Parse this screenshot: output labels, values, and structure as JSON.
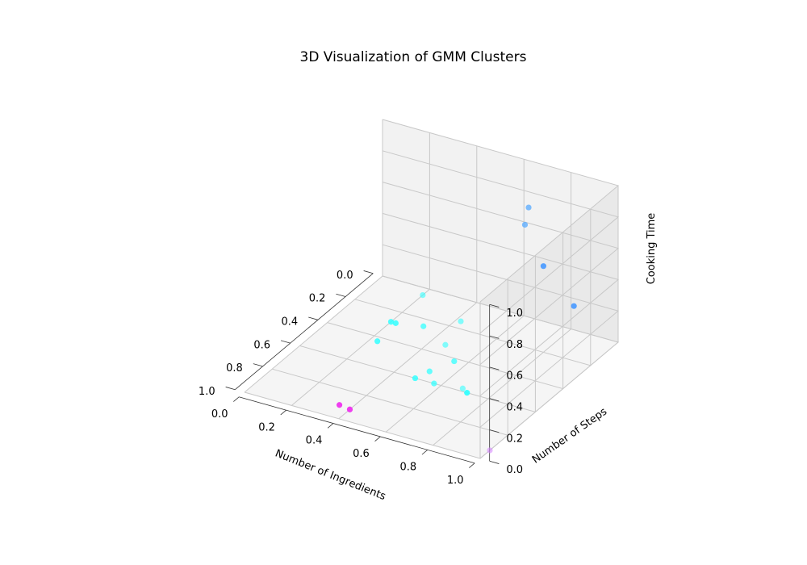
{
  "chart_data": {
    "type": "scatter3d",
    "title": "3D Visualization of GMM Clusters",
    "xlabel": "Number of Ingredients",
    "ylabel": "Number of Steps",
    "zlabel": "Cooking Time",
    "xlim": [
      0,
      1
    ],
    "ylim": [
      0,
      1
    ],
    "zlim": [
      0,
      1
    ],
    "xticks": [
      "0.0",
      "0.2",
      "0.4",
      "0.6",
      "0.8",
      "1.0"
    ],
    "yticks": [
      "0.0",
      "0.2",
      "0.4",
      "0.6",
      "0.8",
      "1.0"
    ],
    "zticks": [
      "0.0",
      "0.2",
      "0.4",
      "0.6",
      "0.8",
      "1.0"
    ],
    "grid": true,
    "colormap": "cool",
    "points": [
      {
        "x": 0.3,
        "y": 0.78,
        "z": 0.88,
        "cluster": 0,
        "color": "#56a9ff",
        "alpha": 0.75
      },
      {
        "x": 0.0,
        "y": 0.62,
        "z": 0.7,
        "cluster": 0,
        "color": "#56a9ff",
        "alpha": 0.75
      },
      {
        "x": 0.2,
        "y": 0.8,
        "z": 0.55,
        "cluster": 0,
        "color": "#4f9dff",
        "alpha": 0.95
      },
      {
        "x": 0.15,
        "y": 0.9,
        "z": 0.3,
        "cluster": 0,
        "color": "#4f9dff",
        "alpha": 0.95
      },
      {
        "x": 0.93,
        "y": 1.0,
        "z": 0.0,
        "cluster": 2,
        "color": "#d78bff",
        "alpha": 0.6
      },
      {
        "x": 0.05,
        "y": 0.2,
        "z": 0.0,
        "cluster": 1,
        "color": "#33ffff",
        "alpha": 0.6
      },
      {
        "x": 0.15,
        "y": 0.42,
        "z": 0.0,
        "cluster": 1,
        "color": "#33ffff",
        "alpha": 0.6
      },
      {
        "x": 0.25,
        "y": 0.32,
        "z": 0.0,
        "cluster": 1,
        "color": "#33ffff",
        "alpha": 0.75
      },
      {
        "x": 0.28,
        "y": 0.2,
        "z": 0.0,
        "cluster": 1,
        "color": "#33ffff",
        "alpha": 0.85
      },
      {
        "x": 0.28,
        "y": 0.22,
        "z": 0.0,
        "cluster": 1,
        "color": "#33ffff",
        "alpha": 0.85
      },
      {
        "x": 0.33,
        "y": 0.46,
        "z": 0.0,
        "cluster": 1,
        "color": "#33ffff",
        "alpha": 0.6
      },
      {
        "x": 0.42,
        "y": 0.55,
        "z": 0.0,
        "cluster": 1,
        "color": "#33ffff",
        "alpha": 0.75
      },
      {
        "x": 0.53,
        "y": 0.51,
        "z": 0.0,
        "cluster": 1,
        "color": "#33ffff",
        "alpha": 0.75
      },
      {
        "x": 0.6,
        "y": 0.49,
        "z": 0.0,
        "cluster": 1,
        "color": "#33ffff",
        "alpha": 0.85
      },
      {
        "x": 0.58,
        "y": 0.68,
        "z": 0.0,
        "cluster": 1,
        "color": "#33ffff",
        "alpha": 0.6
      },
      {
        "x": 0.6,
        "y": 0.71,
        "z": 0.0,
        "cluster": 1,
        "color": "#33ffff",
        "alpha": 0.95
      },
      {
        "x": 0.6,
        "y": 0.57,
        "z": 0.0,
        "cluster": 1,
        "color": "#33ffff",
        "alpha": 0.75
      },
      {
        "x": 0.43,
        "y": 0.23,
        "z": 0.0,
        "cluster": 1,
        "color": "#33ffff",
        "alpha": 0.85
      },
      {
        "x": 0.91,
        "y": 0.35,
        "z": 0.0,
        "cluster": 3,
        "color": "#ee33ee",
        "alpha": 0.95
      },
      {
        "x": 0.92,
        "y": 0.4,
        "z": 0.0,
        "cluster": 3,
        "color": "#ee33ee",
        "alpha": 0.95
      }
    ]
  }
}
